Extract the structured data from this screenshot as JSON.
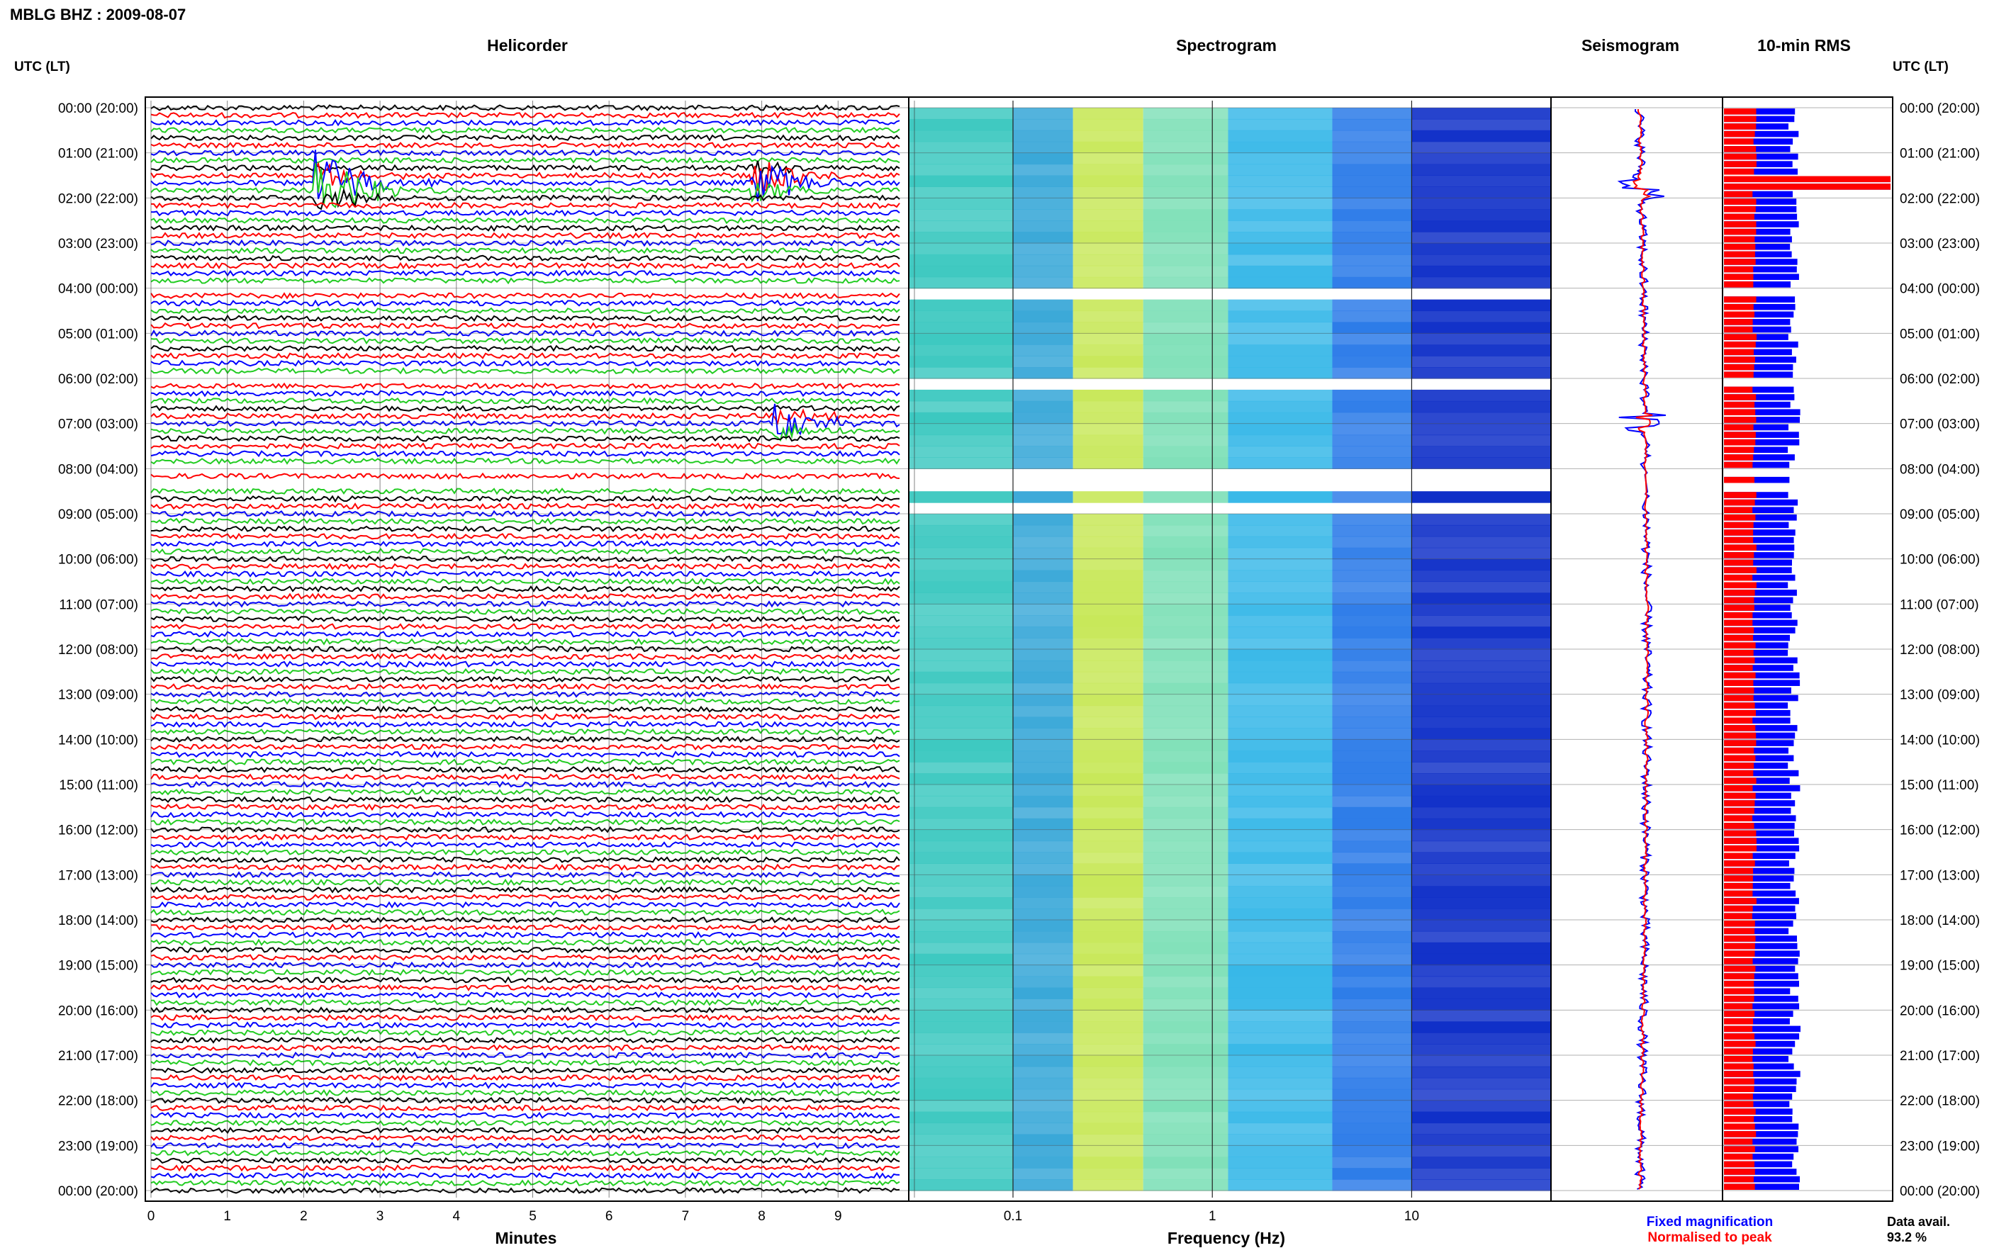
{
  "title": "MBLG BHZ : 2009-08-07",
  "panels": {
    "helicorder": "Helicorder",
    "spectrogram": "Spectrogram",
    "seismogram": "Seismogram",
    "rms": "10-min RMS"
  },
  "axis_labels": {
    "left_header": "UTC (LT)",
    "right_header": "UTC (LT)",
    "minutes": "Minutes",
    "frequency": "Frequency (Hz)"
  },
  "legend": {
    "fixed": "Fixed magnification",
    "normalised": "Normalised to peak"
  },
  "data_avail": {
    "label": "Data avail.",
    "value": "93.2 %"
  },
  "colors": {
    "blue": "#0000ff",
    "red": "#ff0000",
    "black": "#000000",
    "green": "#22cc22"
  },
  "chart_data": [
    {
      "type": "line",
      "name": "helicorder",
      "title": "Helicorder",
      "xlabel": "Minutes",
      "xlim": [
        0,
        10
      ],
      "x_ticks": [
        "0",
        "1",
        "2",
        "3",
        "4",
        "5",
        "6",
        "7",
        "8",
        "9"
      ],
      "y_ticks": [
        "00:00 (20:00)",
        "01:00 (21:00)",
        "02:00 (22:00)",
        "03:00 (23:00)",
        "04:00 (00:00)",
        "05:00 (01:00)",
        "06:00 (02:00)",
        "07:00 (03:00)",
        "08:00 (04:00)",
        "09:00 (05:00)",
        "10:00 (06:00)",
        "11:00 (07:00)",
        "12:00 (08:00)",
        "13:00 (09:00)",
        "14:00 (10:00)",
        "15:00 (11:00)",
        "16:00 (12:00)",
        "17:00 (13:00)",
        "18:00 (14:00)",
        "19:00 (15:00)",
        "20:00 (16:00)",
        "21:00 (17:00)",
        "22:00 (18:00)",
        "23:00 (19:00)",
        "00:00 (20:00)"
      ],
      "lines_per_hour": 6,
      "line_colors": [
        "black",
        "red",
        "blue",
        "green"
      ],
      "gap_hours": [
        4.0,
        6.0,
        8.0,
        8.25,
        8.4,
        8.75
      ],
      "events": [
        {
          "hour": 1.75,
          "minute": 2.2,
          "amplitude": 8
        },
        {
          "hour": 1.6,
          "minute": 7.9,
          "amplitude": 5
        },
        {
          "hour": 7.0,
          "minute": 8.2,
          "amplitude": 3
        }
      ]
    },
    {
      "type": "heatmap",
      "name": "spectrogram",
      "title": "Spectrogram",
      "xlabel": "Frequency (Hz)",
      "x_scale": "log",
      "xlim": [
        0.03,
        50
      ],
      "x_ticks": [
        "0.1",
        "1",
        "10"
      ]
    },
    {
      "type": "line",
      "name": "seismogram",
      "title": "Seismogram"
    },
    {
      "type": "bar",
      "name": "rms",
      "title": "10-min RMS",
      "note": "blue = fixed magnification, red = normalised to peak"
    }
  ]
}
